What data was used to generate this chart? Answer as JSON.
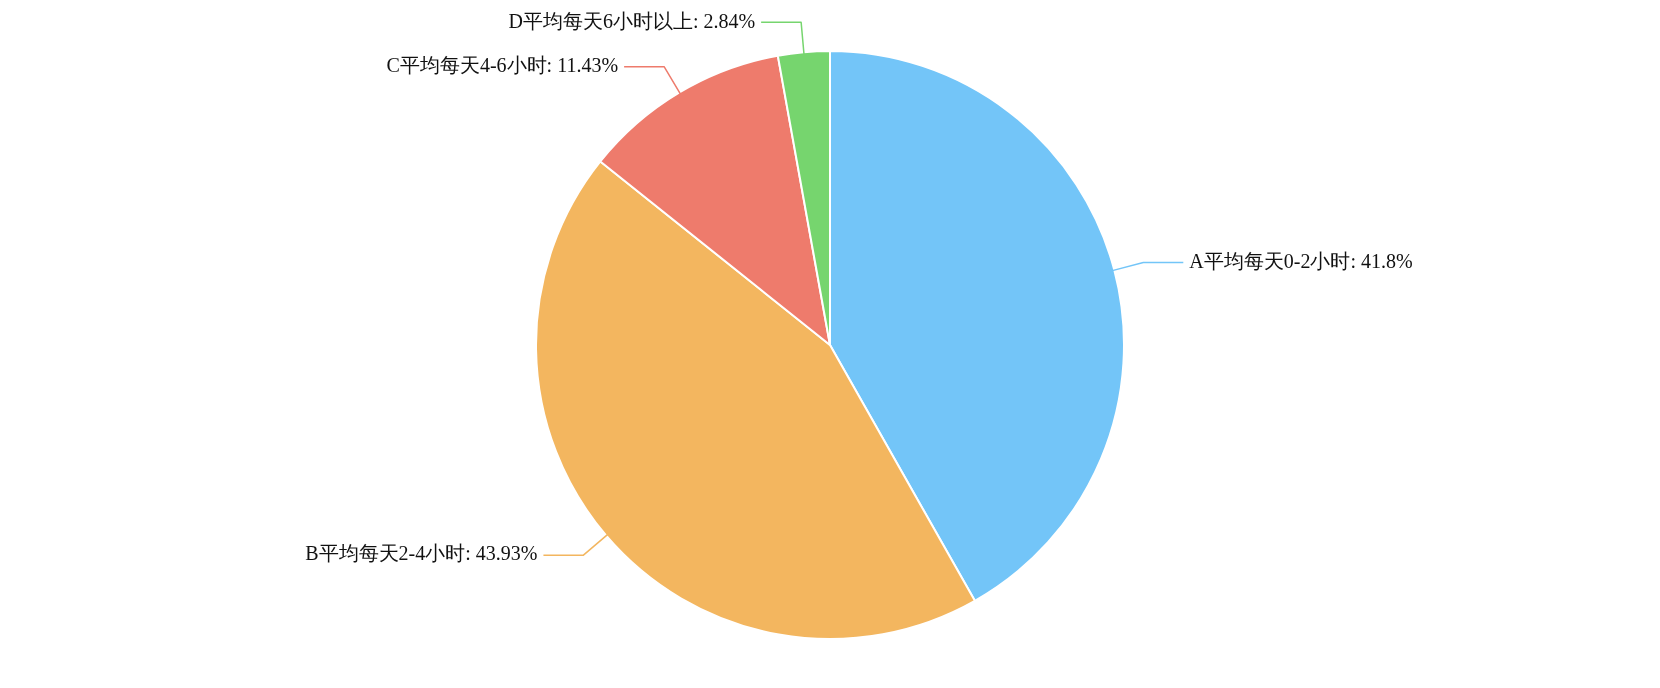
{
  "chart_data": {
    "type": "pie",
    "categories": [
      "A平均每天0-2小时",
      "B平均每天2-4小时",
      "C平均每天4-6小时",
      "D平均每天6小时以上"
    ],
    "values": [
      41.8,
      43.93,
      11.43,
      2.84
    ],
    "value_labels": [
      "41.8%",
      "43.93%",
      "11.43%",
      "2.84%"
    ],
    "colors": [
      "#73c5f8",
      "#f3b65f",
      "#ee7b6c",
      "#76d56e"
    ],
    "legend": false
  }
}
